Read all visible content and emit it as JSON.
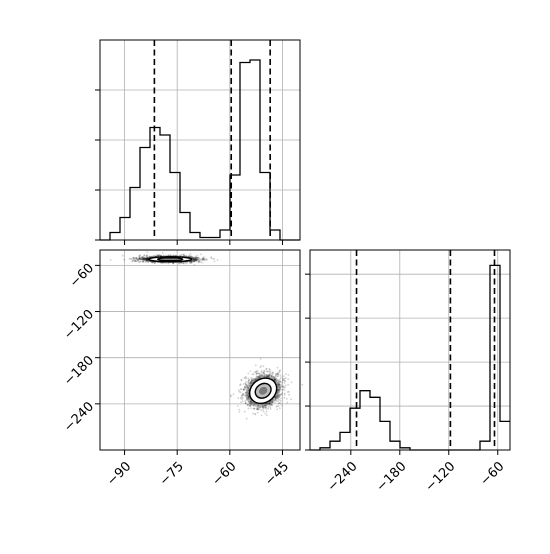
{
  "chart_data": [
    {
      "panel": "top-left",
      "type": "histogram",
      "x_range": [
        -97,
        -40
      ],
      "x_ticks": [
        -90,
        -75,
        -60,
        -45
      ],
      "x_tick_labels": [],
      "y_ticks": [
        0,
        1,
        2,
        3
      ],
      "grid": true,
      "bin_edges": [
        -97,
        -94.15,
        -91.3,
        -88.45,
        -85.6,
        -82.75,
        -79.9,
        -77.05,
        -74.2,
        -71.35,
        -68.5,
        -65.65,
        -62.8,
        -59.95,
        -57.1,
        -54.25,
        -51.4,
        -48.55,
        -45.7,
        -42.85,
        -40
      ],
      "counts": [
        0,
        0.15,
        0.45,
        1.05,
        1.85,
        2.25,
        2.1,
        1.35,
        0.55,
        0.15,
        0.05,
        0.05,
        0.2,
        1.3,
        3.55,
        3.6,
        1.35,
        0.2,
        0,
        0
      ],
      "quantile_lines": [
        -81.5,
        -59.6,
        -48.5
      ]
    },
    {
      "panel": "bottom-left",
      "type": "scatter-density",
      "x_range": [
        -97,
        -40
      ],
      "y_range": [
        -40,
        -300
      ],
      "x_ticks": [
        -90,
        -75,
        -60,
        -45
      ],
      "x_tick_labels": [
        "−90",
        "−75",
        "−60",
        "−45"
      ],
      "y_ticks": [
        -60,
        -120,
        -180,
        -240
      ],
      "y_tick_labels": [
        "−60",
        "−120",
        "−180",
        "−240"
      ],
      "grid": true,
      "clusters": [
        {
          "center": [
            -77,
            -52
          ],
          "spread": [
            4.2,
            2.2
          ],
          "angle_deg": 0,
          "points": 1500
        },
        {
          "center": [
            -50.5,
            -223
          ],
          "spread": [
            2.8,
            10.5
          ],
          "angle_deg": -35,
          "points": 1500
        }
      ]
    },
    {
      "panel": "bottom-right",
      "type": "histogram",
      "x_range": [
        -290,
        -45
      ],
      "x_ticks": [
        -240,
        -180,
        -120,
        -60
      ],
      "x_tick_labels": [
        "−240",
        "−180",
        "−120",
        "−60"
      ],
      "y_ticks": [
        0,
        1,
        2,
        3,
        4
      ],
      "grid": true,
      "bin_edges": [
        -290,
        -277.75,
        -265.5,
        -253.25,
        -241,
        -228.75,
        -216.5,
        -204.25,
        -192,
        -179.75,
        -167.5,
        -155.25,
        -143,
        -130.75,
        -118.5,
        -106.25,
        -94,
        -81.75,
        -69.5,
        -57.25,
        -45
      ],
      "counts": [
        0,
        0.05,
        0.2,
        0.4,
        0.95,
        1.35,
        1.2,
        0.65,
        0.2,
        0.05,
        0,
        0,
        0,
        0,
        0,
        0,
        0,
        0.2,
        4.2,
        0.65
      ],
      "quantile_lines": [
        -233,
        -118,
        -64
      ]
    }
  ]
}
